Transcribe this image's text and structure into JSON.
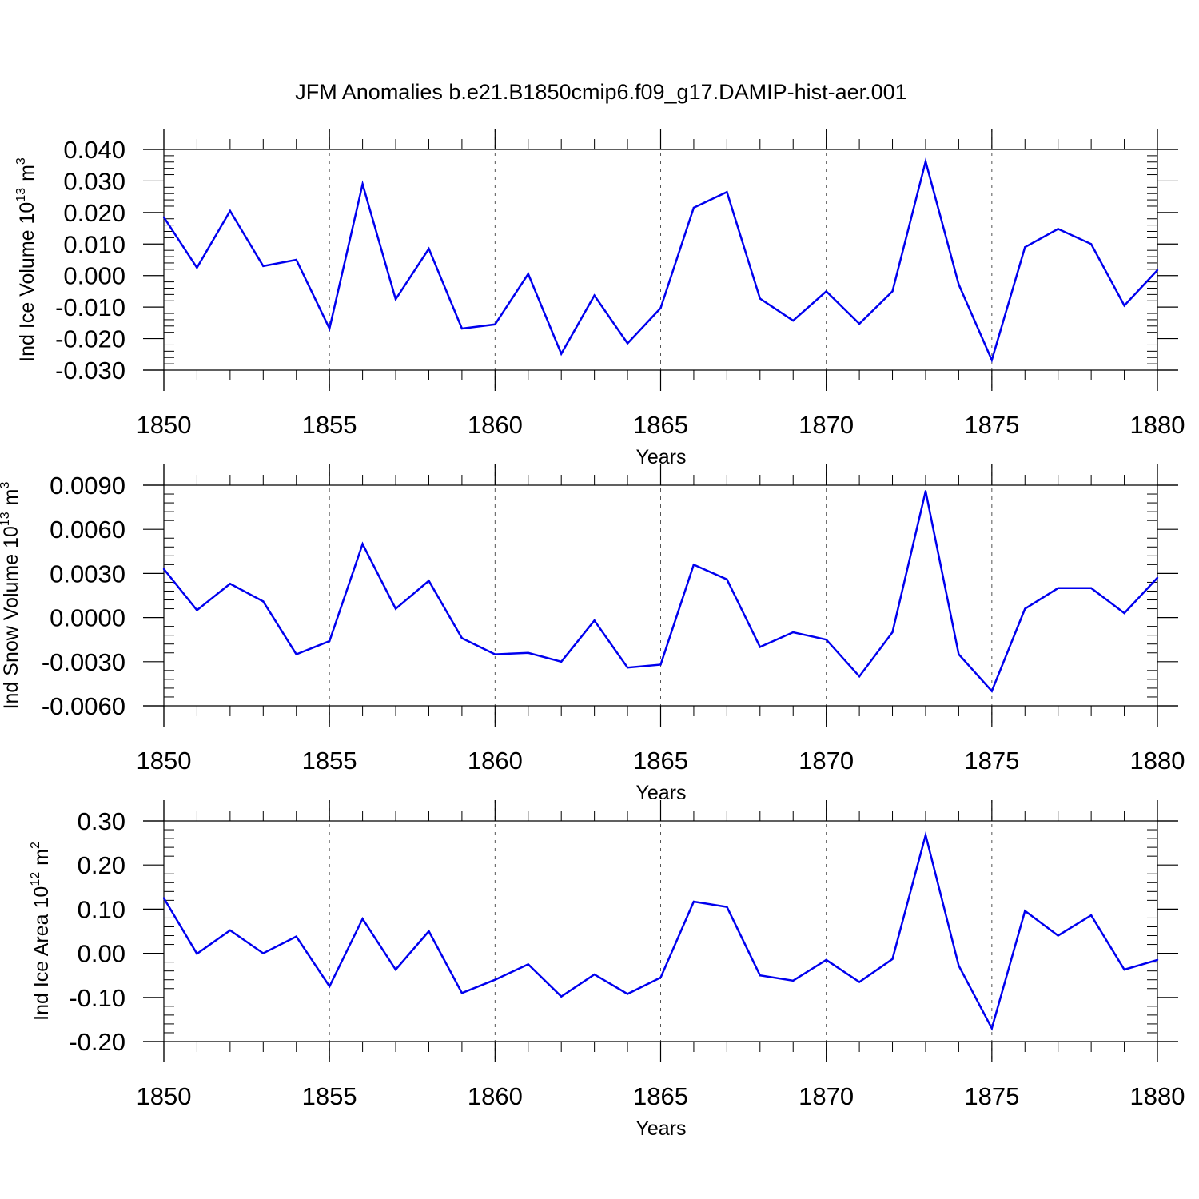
{
  "title": "JFM Anomalies b.e21.B1850cmip6.f09_g17.DAMIP-hist-aer.001",
  "colors": {
    "series": "#0000ee",
    "axis": "#000000",
    "grid": "#555555"
  },
  "chart_data": [
    {
      "type": "line",
      "ylabel_main": "Ind Ice Volume 10",
      "ylabel_exp": "13",
      "ylabel_unit": "m",
      "ylabel_unit_exp": "3",
      "xlabel": "Years",
      "xlim": [
        1850,
        1880
      ],
      "ylim": [
        -0.03,
        0.04
      ],
      "x_ticks": [
        "1850",
        "1855",
        "1860",
        "1865",
        "1870",
        "1875",
        "1880"
      ],
      "y_ticks": [
        "0.040",
        "0.030",
        "0.020",
        "0.010",
        "0.000",
        "-0.010",
        "-0.020",
        "-0.030"
      ],
      "grid": "vertical dashed at major x ticks",
      "x": [
        1850,
        1851,
        1852,
        1853,
        1854,
        1855,
        1856,
        1857,
        1858,
        1859,
        1860,
        1861,
        1862,
        1863,
        1864,
        1865,
        1866,
        1867,
        1868,
        1869,
        1870,
        1871,
        1872,
        1873,
        1874,
        1875,
        1876,
        1877,
        1878,
        1879,
        1880
      ],
      "values": [
        0.0185,
        0.0025,
        0.0205,
        0.003,
        0.005,
        -0.0168,
        0.029,
        -0.0075,
        0.0085,
        -0.0168,
        -0.0155,
        0.0005,
        -0.0248,
        -0.0063,
        -0.0215,
        -0.0103,
        0.0215,
        0.0265,
        -0.0073,
        -0.0143,
        -0.005,
        -0.0153,
        -0.005,
        0.0362,
        -0.0028,
        -0.0268,
        0.009,
        0.0148,
        0.01,
        -0.0095,
        0.0017
      ]
    },
    {
      "type": "line",
      "ylabel_main": "Ind Snow Volume 10",
      "ylabel_exp": "13",
      "ylabel_unit": "m",
      "ylabel_unit_exp": "3",
      "xlabel": "Years",
      "xlim": [
        1850,
        1880
      ],
      "ylim": [
        -0.006,
        0.009
      ],
      "x_ticks": [
        "1850",
        "1855",
        "1860",
        "1865",
        "1870",
        "1875",
        "1880"
      ],
      "y_ticks": [
        "0.0090",
        "0.0060",
        "0.0030",
        "0.0000",
        "-0.0030",
        "-0.0060"
      ],
      "grid": "vertical dashed at major x ticks",
      "x": [
        1850,
        1851,
        1852,
        1853,
        1854,
        1855,
        1856,
        1857,
        1858,
        1859,
        1860,
        1861,
        1862,
        1863,
        1864,
        1865,
        1866,
        1867,
        1868,
        1869,
        1870,
        1871,
        1872,
        1873,
        1874,
        1875,
        1876,
        1877,
        1878,
        1879,
        1880
      ],
      "values": [
        0.0033,
        0.0005,
        0.0023,
        0.0011,
        -0.0025,
        -0.0016,
        0.005,
        0.0006,
        0.0025,
        -0.0014,
        -0.0025,
        -0.0024,
        -0.003,
        -0.0002,
        -0.0034,
        -0.0032,
        0.0036,
        0.0026,
        -0.002,
        -0.001,
        -0.0015,
        -0.004,
        -0.001,
        0.0086,
        -0.0025,
        -0.005,
        0.0006,
        0.002,
        0.002,
        0.0003,
        0.0027
      ]
    },
    {
      "type": "line",
      "ylabel_main": "Ind Ice Area 10",
      "ylabel_exp": "12",
      "ylabel_unit": "m",
      "ylabel_unit_exp": "2",
      "xlabel": "Years",
      "xlim": [
        1850,
        1880
      ],
      "ylim": [
        -0.2,
        0.3
      ],
      "x_ticks": [
        "1850",
        "1855",
        "1860",
        "1865",
        "1870",
        "1875",
        "1880"
      ],
      "y_ticks": [
        "0.30",
        "0.20",
        "0.10",
        "0.00",
        "-0.10",
        "-0.20"
      ],
      "grid": "vertical dashed at major x ticks",
      "x": [
        1850,
        1851,
        1852,
        1853,
        1854,
        1855,
        1856,
        1857,
        1858,
        1859,
        1860,
        1861,
        1862,
        1863,
        1864,
        1865,
        1866,
        1867,
        1868,
        1869,
        1870,
        1871,
        1872,
        1873,
        1874,
        1875,
        1876,
        1877,
        1878,
        1879,
        1880
      ],
      "values": [
        0.125,
        -0.001,
        0.052,
        0.0,
        0.038,
        -0.075,
        0.078,
        -0.037,
        0.05,
        -0.09,
        -0.06,
        -0.025,
        -0.098,
        -0.048,
        -0.092,
        -0.055,
        0.117,
        0.105,
        -0.05,
        -0.062,
        -0.015,
        -0.065,
        -0.013,
        0.268,
        -0.028,
        -0.17,
        0.096,
        0.04,
        0.086,
        -0.037,
        -0.015
      ]
    }
  ]
}
